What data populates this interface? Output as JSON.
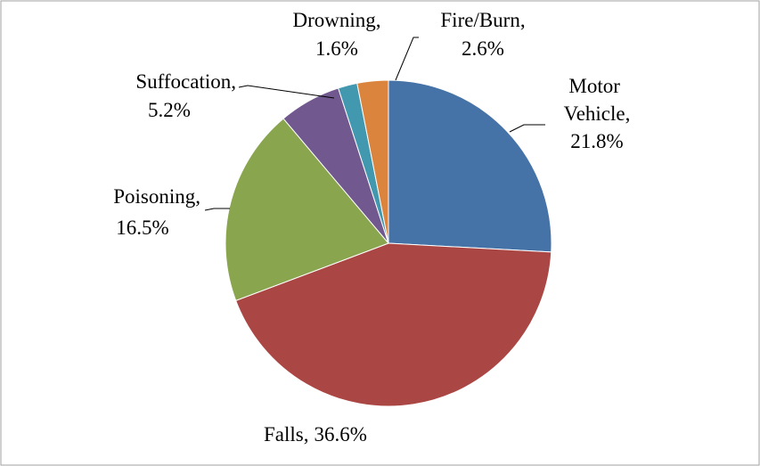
{
  "chart_data": {
    "type": "pie",
    "categories": [
      "Motor Vehicle,",
      "Falls,",
      "Poisoning,",
      "Suffocation,",
      "Drowning,",
      "Fire/Burn,"
    ],
    "values": [
      21.8,
      36.6,
      16.5,
      5.2,
      1.6,
      2.6
    ],
    "value_labels": [
      "21.8%",
      "36.6%",
      "16.5%",
      "5.2%",
      "1.6%",
      "2.6%"
    ],
    "colors": [
      "#4572a7",
      "#aa4643",
      "#89a54e",
      "#71588f",
      "#4198af",
      "#db843d"
    ]
  }
}
